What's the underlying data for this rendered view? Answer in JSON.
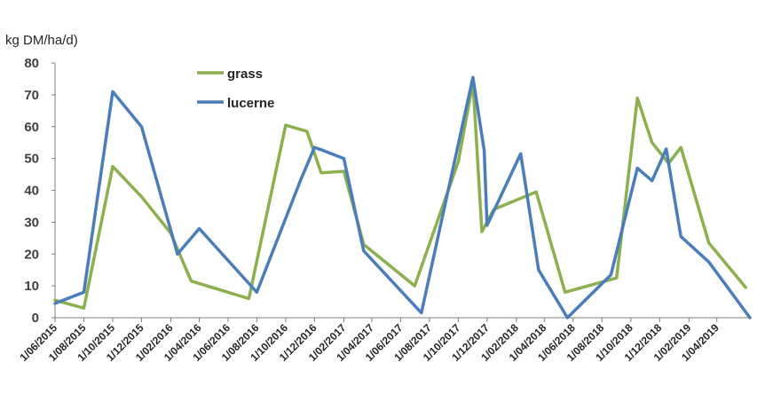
{
  "chart_data": {
    "type": "line",
    "title": "",
    "xlabel": "",
    "ylabel": "kg DM/ha/d)",
    "ylim": [
      0,
      80
    ],
    "yticks": [
      0,
      10,
      20,
      30,
      40,
      50,
      60,
      70,
      80
    ],
    "grid": false,
    "legend_position": "top-left",
    "xticks": [
      "1/06/2015",
      "1/08/2015",
      "1/10/2015",
      "1/12/2015",
      "1/02/2016",
      "1/04/2016",
      "1/06/2016",
      "1/08/2016",
      "1/10/2016",
      "1/12/2016",
      "1/02/2017",
      "1/04/2017",
      "1/06/2017",
      "1/08/2017",
      "1/10/2017",
      "1/12/2017",
      "1/02/2018",
      "1/04/2018",
      "1/06/2018",
      "1/08/2018",
      "1/10/2018",
      "1/12/2018",
      "1/02/2019",
      "1/04/2019"
    ],
    "series": [
      {
        "name": "grass",
        "color": "#8cb04e",
        "points": [
          [
            "2015-06-01",
            5.5
          ],
          [
            "2015-08-01",
            3
          ],
          [
            "2015-10-01",
            47.5
          ],
          [
            "2015-12-01",
            38
          ],
          [
            "2016-02-01",
            26.5
          ],
          [
            "2016-03-15",
            11.5
          ],
          [
            "2016-07-15",
            6
          ],
          [
            "2016-10-01",
            60.5
          ],
          [
            "2016-11-15",
            58.5
          ],
          [
            "2016-12-15",
            45.5
          ],
          [
            "2017-02-01",
            46
          ],
          [
            "2017-03-15",
            23
          ],
          [
            "2017-07-01",
            10
          ],
          [
            "2017-10-01",
            49
          ],
          [
            "2017-11-01",
            74
          ],
          [
            "2017-11-20",
            27
          ],
          [
            "2017-12-15",
            34
          ],
          [
            "2018-03-15",
            39.5
          ],
          [
            "2018-05-15",
            8
          ],
          [
            "2018-09-01",
            12.5
          ],
          [
            "2018-10-15",
            69
          ],
          [
            "2018-11-15",
            55
          ],
          [
            "2018-12-20",
            48.5
          ],
          [
            "2019-01-15",
            53.5
          ],
          [
            "2019-03-15",
            23.5
          ],
          [
            "2019-06-01",
            9.5
          ]
        ]
      },
      {
        "name": "lucerne",
        "color": "#4a7ebb",
        "points": [
          [
            "2015-06-01",
            4.5
          ],
          [
            "2015-08-01",
            8
          ],
          [
            "2015-10-01",
            71
          ],
          [
            "2015-12-01",
            60
          ],
          [
            "2016-02-15",
            20
          ],
          [
            "2016-04-01",
            28
          ],
          [
            "2016-08-01",
            8
          ],
          [
            "2016-11-01",
            43
          ],
          [
            "2016-12-01",
            53.5
          ],
          [
            "2016-12-20",
            52.5
          ],
          [
            "2017-02-01",
            50
          ],
          [
            "2017-03-15",
            21
          ],
          [
            "2017-07-15",
            1.5
          ],
          [
            "2017-11-01",
            75.5
          ],
          [
            "2017-11-25",
            52.5
          ],
          [
            "2017-12-01",
            29
          ],
          [
            "2018-02-10",
            51.5
          ],
          [
            "2018-03-20",
            15
          ],
          [
            "2018-05-20",
            0
          ],
          [
            "2018-08-20",
            13.5
          ],
          [
            "2018-10-15",
            47
          ],
          [
            "2018-11-15",
            43
          ],
          [
            "2018-12-15",
            53
          ],
          [
            "2019-01-15",
            25.5
          ],
          [
            "2019-03-15",
            17.5
          ],
          [
            "2019-06-10",
            0
          ]
        ]
      }
    ]
  }
}
